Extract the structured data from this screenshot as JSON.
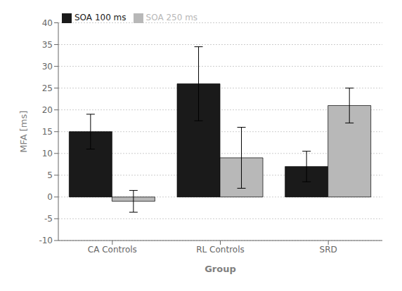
{
  "chart_data": {
    "type": "bar",
    "categories": [
      "CA Controls",
      "RL Controls",
      "SRD"
    ],
    "series": [
      {
        "name": "SOA 100 ms",
        "color": "#1a1a1a",
        "values": [
          15.0,
          26.0,
          7.0
        ],
        "errors": [
          4.0,
          8.5,
          3.5
        ]
      },
      {
        "name": "SOA 250 ms",
        "color": "#b8b8b8",
        "values": [
          -1.0,
          9.0,
          21.0
        ],
        "errors": [
          2.5,
          7.0,
          4.0
        ]
      }
    ],
    "xlabel": "Group",
    "ylabel": "MFA [ms]",
    "ylim": [
      -10,
      40
    ],
    "yticks": [
      -10,
      -5,
      0,
      5,
      10,
      15,
      20,
      25,
      30,
      35,
      40
    ],
    "grid": true,
    "legend": "upper left"
  }
}
